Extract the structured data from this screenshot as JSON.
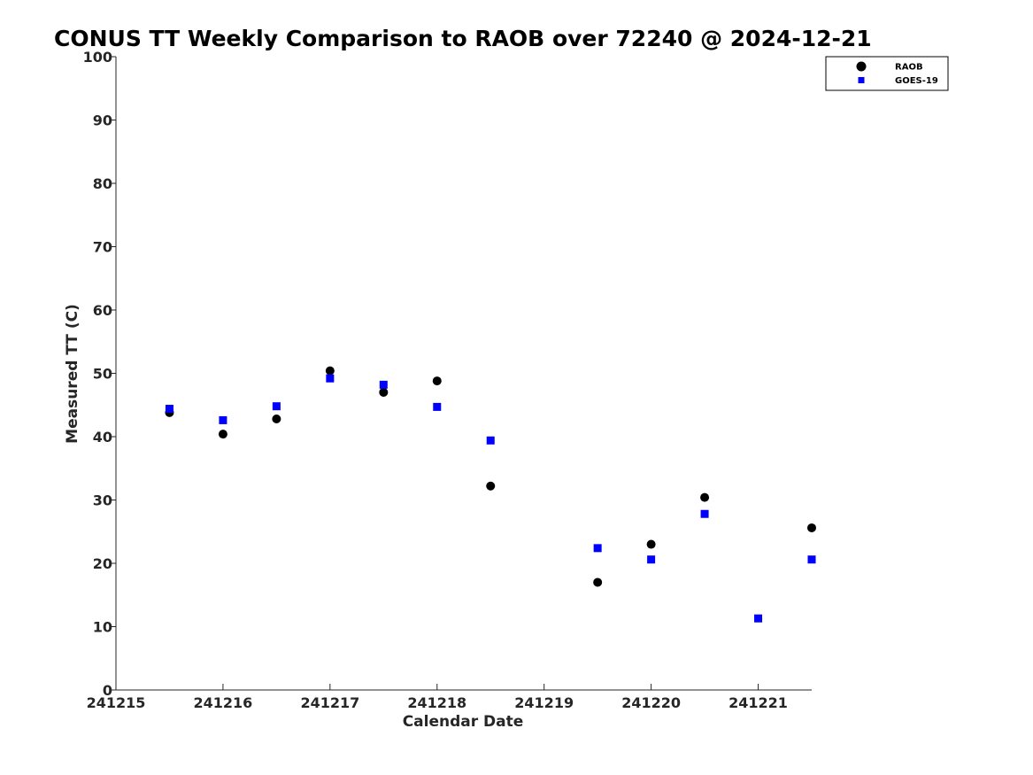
{
  "chart_data": {
    "type": "scatter",
    "title": "CONUS TT Weekly Comparison to RAOB over 72240 @ 2024-12-21",
    "xlabel": "Calendar Date",
    "ylabel": "Measured TT (C)",
    "x_ticks": [
      "241215",
      "241216",
      "241217",
      "241218",
      "241219",
      "241220",
      "241221"
    ],
    "xlim": [
      0,
      6.5
    ],
    "ylim": [
      0,
      100
    ],
    "y_ticks": [
      0,
      10,
      20,
      30,
      40,
      50,
      60,
      70,
      80,
      90,
      100
    ],
    "grid": false,
    "legend_position": "top-right",
    "series": [
      {
        "name": "RAOB",
        "marker": "circle",
        "color": "#000000",
        "points": [
          {
            "x": 0.5,
            "y": 43.8
          },
          {
            "x": 1.0,
            "y": 40.4
          },
          {
            "x": 1.5,
            "y": 42.8
          },
          {
            "x": 2.0,
            "y": 50.4
          },
          {
            "x": 2.5,
            "y": 47.0
          },
          {
            "x": 3.0,
            "y": 48.8
          },
          {
            "x": 3.5,
            "y": 32.2
          },
          {
            "x": 4.5,
            "y": 17.0
          },
          {
            "x": 5.0,
            "y": 23.0
          },
          {
            "x": 5.5,
            "y": 30.4
          },
          {
            "x": 6.5,
            "y": 25.6
          }
        ]
      },
      {
        "name": "GOES-19",
        "marker": "square",
        "color": "#0000ff",
        "points": [
          {
            "x": 0.5,
            "y": 44.4
          },
          {
            "x": 1.0,
            "y": 42.6
          },
          {
            "x": 1.5,
            "y": 44.8
          },
          {
            "x": 2.0,
            "y": 49.2
          },
          {
            "x": 2.5,
            "y": 48.2
          },
          {
            "x": 3.0,
            "y": 44.7
          },
          {
            "x": 3.5,
            "y": 39.4
          },
          {
            "x": 4.5,
            "y": 22.4
          },
          {
            "x": 5.0,
            "y": 20.6
          },
          {
            "x": 5.5,
            "y": 27.8
          },
          {
            "x": 6.0,
            "y": 11.3
          },
          {
            "x": 6.5,
            "y": 20.6
          }
        ]
      }
    ]
  }
}
